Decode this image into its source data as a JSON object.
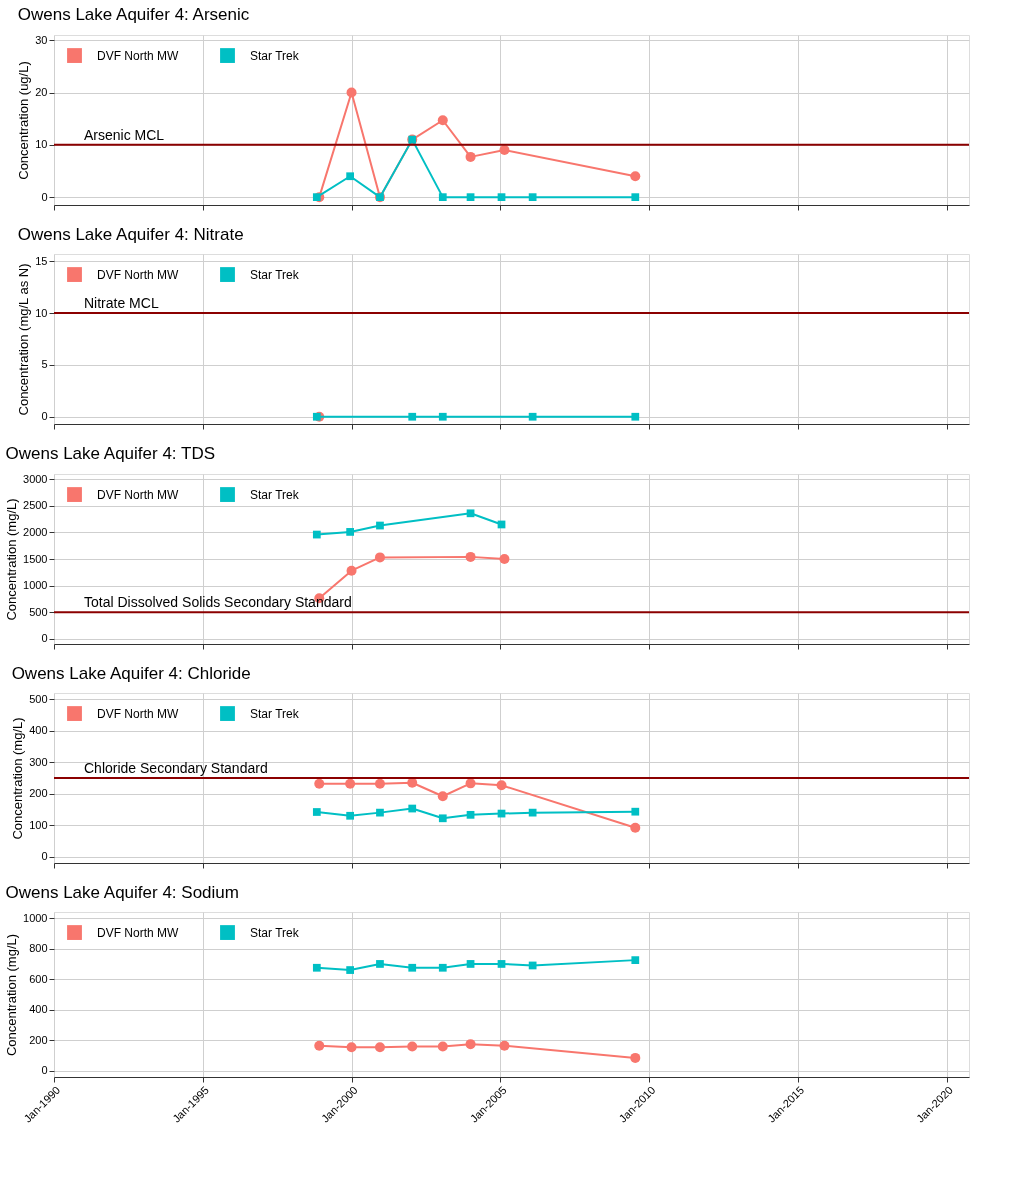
{
  "chart_data": [
    {
      "type": "line",
      "title": "Owens Lake Aquifer 4: Arsenic",
      "ylabel": "Concentration (ug/L)",
      "xlim": [
        "1990-01-01",
        "2020-10-01"
      ],
      "xticks": [
        {
          "value": "1990-01-01",
          "label": null
        },
        {
          "value": "1995-01-01",
          "label": null
        },
        {
          "value": "2000-01-01",
          "label": null
        },
        {
          "value": "2005-01-01",
          "label": null
        },
        {
          "value": "2010-01-01",
          "label": null
        },
        {
          "value": "2015-01-01",
          "label": null
        },
        {
          "value": "2020-01-01",
          "label": null
        }
      ],
      "ylim": [
        -1.5,
        31
      ],
      "yticks": [
        0,
        10,
        20,
        30
      ],
      "grid": true,
      "legend": "top left",
      "tick_labels": "y",
      "series": [
        {
          "name": "DVF North MW",
          "color": "#f8766d",
          "marker": "circle",
          "x": [
            "1998-12-01",
            "2000-01-01",
            "2000-12-15",
            "2002-01-15",
            "2003-01-25",
            "2004-01-01",
            "2005-02-20",
            "2009-07-15"
          ],
          "values": [
            0,
            20,
            0,
            11,
            14.7,
            7.7,
            9,
            4
          ]
        },
        {
          "name": "Star Trek",
          "color": "#00bfc4",
          "marker": "square",
          "x": [
            "1998-11-01",
            "1999-12-15",
            "2000-12-15",
            "2002-01-15",
            "2003-01-25",
            "2004-01-01",
            "2005-01-15",
            "2006-02-01",
            "2009-07-15"
          ],
          "values": [
            0,
            4,
            0,
            11,
            0,
            0,
            0,
            0,
            0
          ]
        }
      ],
      "ref_lines": [
        {
          "axis": "y",
          "value": 10,
          "label": "Arsenic MCL",
          "color": "#8b0000"
        }
      ]
    },
    {
      "type": "line",
      "title": "Owens Lake Aquifer 4: Nitrate",
      "ylabel": "Concentration (mg/L as N)",
      "xlim": [
        "1990-01-01",
        "2020-10-01"
      ],
      "xticks": [
        {
          "value": "1990-01-01",
          "label": null
        },
        {
          "value": "1995-01-01",
          "label": null
        },
        {
          "value": "2000-01-01",
          "label": null
        },
        {
          "value": "2005-01-01",
          "label": null
        },
        {
          "value": "2010-01-01",
          "label": null
        },
        {
          "value": "2015-01-01",
          "label": null
        },
        {
          "value": "2020-01-01",
          "label": null
        }
      ],
      "ylim": [
        -0.7,
        15.7
      ],
      "yticks": [
        0,
        5,
        10,
        15
      ],
      "grid": true,
      "legend": "top left",
      "tick_labels": "y",
      "series": [
        {
          "name": "DVF North MW",
          "color": "#f8766d",
          "marker": "circle",
          "x": [
            "1998-12-01"
          ],
          "values": [
            0
          ]
        },
        {
          "name": "Star Trek",
          "color": "#00bfc4",
          "marker": "square",
          "x": [
            "1998-11-01",
            "2002-01-15",
            "2003-01-25",
            "2006-02-01",
            "2009-07-15"
          ],
          "values": [
            0,
            0,
            0,
            0,
            0
          ]
        }
      ],
      "ref_lines": [
        {
          "axis": "y",
          "value": 10,
          "label": "Nitrate MCL",
          "color": "#8b0000"
        }
      ]
    },
    {
      "type": "line",
      "title": "Owens Lake Aquifer 4: TDS",
      "ylabel": "Concentration (mg/L)",
      "xlim": [
        "1990-01-01",
        "2020-10-01"
      ],
      "xticks": [
        {
          "value": "1990-01-01",
          "label": null
        },
        {
          "value": "1995-01-01",
          "label": null
        },
        {
          "value": "2000-01-01",
          "label": null
        },
        {
          "value": "2005-01-01",
          "label": null
        },
        {
          "value": "2010-01-01",
          "label": null
        },
        {
          "value": "2015-01-01",
          "label": null
        },
        {
          "value": "2020-01-01",
          "label": null
        }
      ],
      "ylim": [
        -100,
        3100
      ],
      "yticks": [
        0,
        500,
        1000,
        1500,
        2000,
        2500,
        3000
      ],
      "grid": true,
      "legend": "top left",
      "tick_labels": "y",
      "series": [
        {
          "name": "DVF North MW",
          "color": "#f8766d",
          "marker": "circle",
          "x": [
            "1998-12-01",
            "2000-01-01",
            "2000-12-15",
            "2004-01-01",
            "2005-02-20"
          ],
          "values": [
            760,
            1280,
            1530,
            1540,
            1500
          ]
        },
        {
          "name": "Star Trek",
          "color": "#00bfc4",
          "marker": "square",
          "x": [
            "1998-11-01",
            "1999-12-15",
            "2000-12-15",
            "2004-01-01",
            "2005-01-15"
          ],
          "values": [
            1960,
            2010,
            2130,
            2360,
            2150
          ]
        }
      ],
      "ref_lines": [
        {
          "axis": "y",
          "value": 500,
          "label": "Total Dissolved Solids Secondary Standard",
          "color": "#8b0000"
        }
      ]
    },
    {
      "type": "line",
      "title": "Owens Lake Aquifer 4: Chloride",
      "ylabel": "Concentration (mg/L)",
      "xlim": [
        "1990-01-01",
        "2020-10-01"
      ],
      "xticks": [
        {
          "value": "1990-01-01",
          "label": null
        },
        {
          "value": "1995-01-01",
          "label": null
        },
        {
          "value": "2000-01-01",
          "label": null
        },
        {
          "value": "2005-01-01",
          "label": null
        },
        {
          "value": "2010-01-01",
          "label": null
        },
        {
          "value": "2015-01-01",
          "label": null
        },
        {
          "value": "2020-01-01",
          "label": null
        }
      ],
      "ylim": [
        -20,
        520
      ],
      "yticks": [
        0,
        100,
        200,
        300,
        400,
        500
      ],
      "grid": true,
      "legend": "top left",
      "tick_labels": "y",
      "series": [
        {
          "name": "DVF North MW",
          "color": "#f8766d",
          "marker": "circle",
          "x": [
            "1998-12-01",
            "1999-12-15",
            "2000-12-15",
            "2002-01-15",
            "2003-01-25",
            "2004-01-01",
            "2005-01-15",
            "2009-07-15"
          ],
          "values": [
            232,
            232,
            232,
            235,
            192,
            233,
            227,
            92
          ]
        },
        {
          "name": "Star Trek",
          "color": "#00bfc4",
          "marker": "square",
          "x": [
            "1998-11-01",
            "1999-12-15",
            "2000-12-15",
            "2002-01-15",
            "2003-01-25",
            "2004-01-01",
            "2005-01-15",
            "2006-02-01",
            "2009-07-15"
          ],
          "values": [
            142,
            130,
            140,
            153,
            122,
            133,
            137,
            140,
            143
          ]
        }
      ],
      "ref_lines": [
        {
          "axis": "y",
          "value": 250,
          "label": "Chloride Secondary Standard",
          "color": "#8b0000"
        }
      ]
    },
    {
      "type": "line",
      "title": "Owens Lake Aquifer 4: Sodium",
      "ylabel": "Concentration (mg/L)",
      "xlim": [
        "1990-01-01",
        "2020-10-01"
      ],
      "xticks": [
        {
          "value": "1990-01-01",
          "label": "Jan-1990"
        },
        {
          "value": "1995-01-01",
          "label": "Jan-1995"
        },
        {
          "value": "2000-01-01",
          "label": "Jan-2000"
        },
        {
          "value": "2005-01-01",
          "label": "Jan-2005"
        },
        {
          "value": "2010-01-01",
          "label": "Jan-2010"
        },
        {
          "value": "2015-01-01",
          "label": "Jan-2015"
        },
        {
          "value": "2020-01-01",
          "label": "Jan-2020"
        }
      ],
      "ylim": [
        -40,
        1040
      ],
      "yticks": [
        0,
        200,
        400,
        600,
        800,
        1000
      ],
      "grid": true,
      "legend": "top left",
      "series": [
        {
          "name": "DVF North MW",
          "color": "#f8766d",
          "marker": "circle",
          "x": [
            "1998-12-01",
            "2000-01-01",
            "2000-12-15",
            "2002-01-15",
            "2003-01-25",
            "2004-01-01",
            "2005-02-20",
            "2009-07-15"
          ],
          "values": [
            165,
            155,
            155,
            160,
            160,
            175,
            165,
            85
          ]
        },
        {
          "name": "Star Trek",
          "color": "#00bfc4",
          "marker": "square",
          "x": [
            "1998-11-01",
            "1999-12-15",
            "2000-12-15",
            "2002-01-15",
            "2003-01-25",
            "2004-01-01",
            "2005-01-15",
            "2006-02-01",
            "2009-07-15"
          ],
          "values": [
            675,
            660,
            700,
            675,
            675,
            700,
            700,
            690,
            725
          ]
        }
      ]
    }
  ]
}
